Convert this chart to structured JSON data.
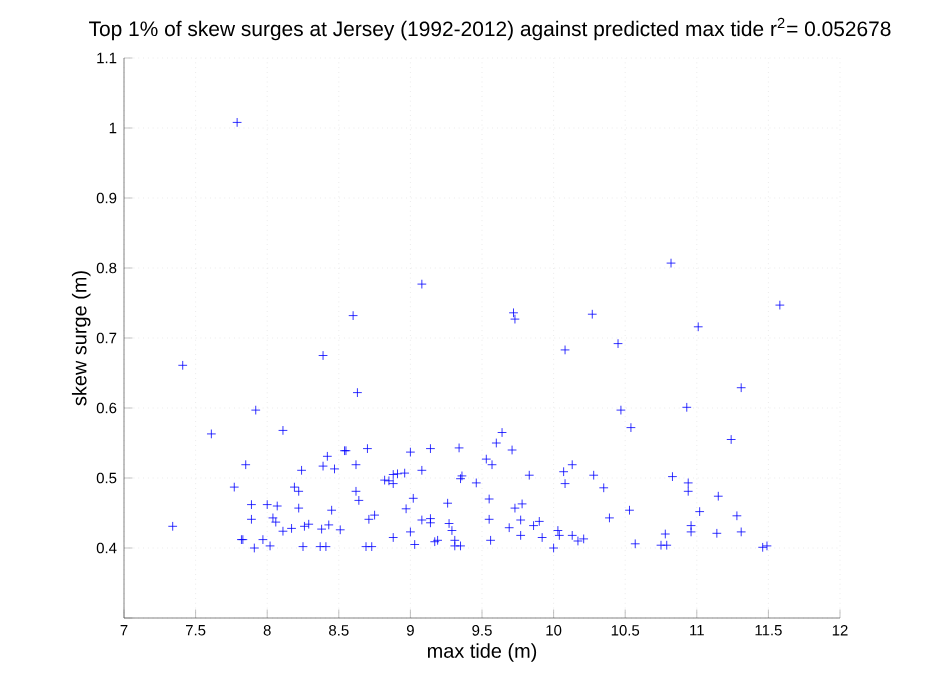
{
  "chart_data": {
    "type": "scatter",
    "title": "Top 1% of skew surges at Jersey (1992-2012) against predicted max tide r$^{2}$= 0.052678",
    "xlabel": "max tide (m)",
    "ylabel": "skew surge (m)",
    "xlim": [
      7,
      12
    ],
    "ylim": [
      0.3,
      1.1
    ],
    "xticks": [
      7,
      7.5,
      8,
      8.5,
      9,
      9.5,
      10,
      10.5,
      11,
      11.5,
      12
    ],
    "yticks": [
      {
        "value": 0.3,
        "label": null
      },
      0.4,
      0.5,
      0.6,
      0.7,
      0.8,
      0.9,
      1,
      1.1
    ],
    "grid": true,
    "marker": "cross",
    "series": [
      {
        "color": "#0000ff",
        "x": [
          7.34,
          7.61,
          7.92,
          8.11,
          7.77,
          7.85,
          7.89,
          7.89,
          7.82,
          7.83,
          7.91,
          7.97,
          8.0,
          8.02,
          8.04,
          8.07,
          8.06,
          8.11,
          8.17,
          8.19,
          8.22,
          8.22,
          8.24,
          8.26,
          8.29,
          8.25,
          8.37,
          8.41,
          8.38,
          8.43,
          8.39,
          8.42,
          8.45,
          8.47,
          8.51,
          8.54,
          8.55,
          8.62,
          8.62,
          8.64,
          8.7,
          8.69,
          8.73,
          8.71,
          8.75,
          8.82,
          8.85,
          8.88,
          8.88,
          8.91,
          8.88,
          8.96,
          8.97,
          9.0,
          9.0,
          9.02,
          9.03,
          9.08,
          9.08,
          9.14,
          9.14,
          9.14,
          9.17,
          9.19,
          9.26,
          9.27,
          9.29,
          9.31,
          9.31,
          9.35,
          9.34,
          9.35,
          9.36,
          9.46,
          9.53,
          9.55,
          9.55,
          9.56,
          9.57,
          9.6,
          9.64,
          9.71,
          9.83,
          9.69,
          9.73,
          9.78,
          9.77,
          9.77,
          9.86,
          9.9,
          9.92,
          10.0,
          10.03,
          10.04,
          10.07,
          10.08,
          10.13,
          10.13,
          10.17,
          10.21,
          10.28,
          10.35,
          10.39,
          10.53,
          10.57,
          10.75,
          10.79,
          10.78,
          10.83,
          10.94,
          10.94,
          10.96,
          10.96,
          11.02,
          11.15,
          11.14,
          11.28,
          11.31,
          11.46,
          11.49,
          10.47,
          10.93,
          10.54,
          11.24,
          7.79,
          7.41,
          8.39,
          8.6,
          8.63,
          9.08,
          10.82,
          9.72,
          9.73,
          10.27,
          11.58,
          11.01,
          10.08,
          10.45,
          11.31
        ],
        "values": [
          0.431,
          0.563,
          0.597,
          0.568,
          0.487,
          0.519,
          0.462,
          0.441,
          0.412,
          0.412,
          0.4,
          0.412,
          0.462,
          0.403,
          0.443,
          0.46,
          0.437,
          0.424,
          0.428,
          0.487,
          0.481,
          0.457,
          0.511,
          0.431,
          0.434,
          0.402,
          0.402,
          0.402,
          0.427,
          0.433,
          0.517,
          0.531,
          0.454,
          0.513,
          0.426,
          0.539,
          0.539,
          0.519,
          0.481,
          0.468,
          0.542,
          0.402,
          0.402,
          0.441,
          0.447,
          0.497,
          0.496,
          0.505,
          0.492,
          0.506,
          0.415,
          0.507,
          0.456,
          0.537,
          0.423,
          0.471,
          0.405,
          0.511,
          0.44,
          0.542,
          0.442,
          0.436,
          0.409,
          0.411,
          0.464,
          0.435,
          0.425,
          0.411,
          0.403,
          0.403,
          0.543,
          0.499,
          0.503,
          0.493,
          0.527,
          0.47,
          0.441,
          0.411,
          0.519,
          0.55,
          0.565,
          0.54,
          0.504,
          0.429,
          0.457,
          0.463,
          0.44,
          0.418,
          0.432,
          0.438,
          0.415,
          0.4,
          0.425,
          0.418,
          0.509,
          0.492,
          0.519,
          0.418,
          0.41,
          0.413,
          0.504,
          0.486,
          0.443,
          0.454,
          0.406,
          0.404,
          0.404,
          0.42,
          0.502,
          0.493,
          0.481,
          0.432,
          0.423,
          0.452,
          0.474,
          0.421,
          0.446,
          0.423,
          0.401,
          0.403,
          0.597,
          0.601,
          0.572,
          0.555,
          1.008,
          0.661,
          0.675,
          0.732,
          0.622,
          0.777,
          0.807,
          0.736,
          0.727,
          0.734,
          0.747,
          0.716,
          0.683,
          0.692,
          0.629
        ]
      }
    ]
  }
}
